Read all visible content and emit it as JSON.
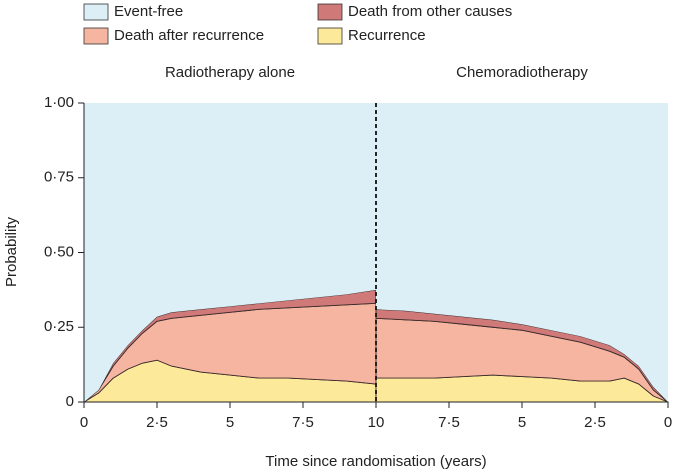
{
  "chart_data": [
    {
      "type": "stacked-area",
      "title": "Radiotherapy alone",
      "ylabel": "Probability",
      "xlabel": "Time since randomisation (years)",
      "x": [
        0,
        0.5,
        1,
        1.5,
        2,
        2.5,
        3,
        4,
        5,
        6,
        7,
        8,
        9,
        10
      ],
      "series": [
        {
          "name": "Recurrence",
          "color": "#fde99a",
          "values": [
            0,
            0.03,
            0.08,
            0.11,
            0.13,
            0.14,
            0.12,
            0.1,
            0.09,
            0.08,
            0.08,
            0.075,
            0.07,
            0.06
          ]
        },
        {
          "name": "Death after recurrence",
          "color": "#f6b5a1",
          "values": [
            0,
            0.01,
            0.04,
            0.07,
            0.1,
            0.13,
            0.16,
            0.19,
            0.21,
            0.23,
            0.235,
            0.245,
            0.255,
            0.27
          ]
        },
        {
          "name": "Death from other causes",
          "color": "#cf7a78",
          "values": [
            0,
            0,
            0.01,
            0.01,
            0.01,
            0.015,
            0.02,
            0.02,
            0.02,
            0.02,
            0.025,
            0.03,
            0.035,
            0.045
          ]
        },
        {
          "name": "Event-free",
          "color": "#dceef6",
          "values": [
            1,
            0.96,
            0.87,
            0.81,
            0.76,
            0.715,
            0.7,
            0.69,
            0.68,
            0.67,
            0.66,
            0.65,
            0.64,
            0.625
          ]
        }
      ],
      "xlim": [
        0,
        10
      ],
      "xticks": [
        0,
        {
          "value": 2.5,
          "label": "2·5"
        },
        5,
        {
          "value": 7.5,
          "label": "7·5"
        },
        10
      ],
      "ylim": [
        0,
        1
      ],
      "yticks": [
        0,
        {
          "value": 0.25,
          "label": "0·25"
        },
        {
          "value": 0.5,
          "label": "0·50"
        },
        {
          "value": 0.75,
          "label": "0·75"
        },
        {
          "value": 1,
          "label": "1·00"
        }
      ]
    },
    {
      "type": "stacked-area",
      "title": "Chemoradiotherapy",
      "x": [
        10,
        9,
        8,
        7,
        6,
        5,
        4,
        3,
        2,
        1.5,
        1,
        0.5,
        0
      ],
      "series": [
        {
          "name": "Recurrence",
          "color": "#fde99a",
          "values": [
            0.08,
            0.08,
            0.08,
            0.085,
            0.09,
            0.085,
            0.08,
            0.07,
            0.07,
            0.08,
            0.06,
            0.02,
            0
          ]
        },
        {
          "name": "Death after recurrence",
          "color": "#f6b5a1",
          "values": [
            0.2,
            0.195,
            0.19,
            0.175,
            0.16,
            0.155,
            0.14,
            0.13,
            0.1,
            0.07,
            0.05,
            0.02,
            0
          ]
        },
        {
          "name": "Death from other causes",
          "color": "#cf7a78",
          "values": [
            0.03,
            0.03,
            0.025,
            0.025,
            0.025,
            0.02,
            0.02,
            0.02,
            0.02,
            0.01,
            0.01,
            0.01,
            0
          ]
        },
        {
          "name": "Event-free",
          "color": "#dceef6",
          "values": [
            0.69,
            0.695,
            0.705,
            0.715,
            0.725,
            0.74,
            0.76,
            0.78,
            0.81,
            0.84,
            0.88,
            0.95,
            1
          ]
        }
      ],
      "xlim": [
        10,
        0
      ],
      "xticks": [
        {
          "value": 7.5,
          "label": "7·5"
        },
        5,
        {
          "value": 2.5,
          "label": "2·5"
        },
        0
      ],
      "ylim": [
        0,
        1
      ]
    }
  ]
}
